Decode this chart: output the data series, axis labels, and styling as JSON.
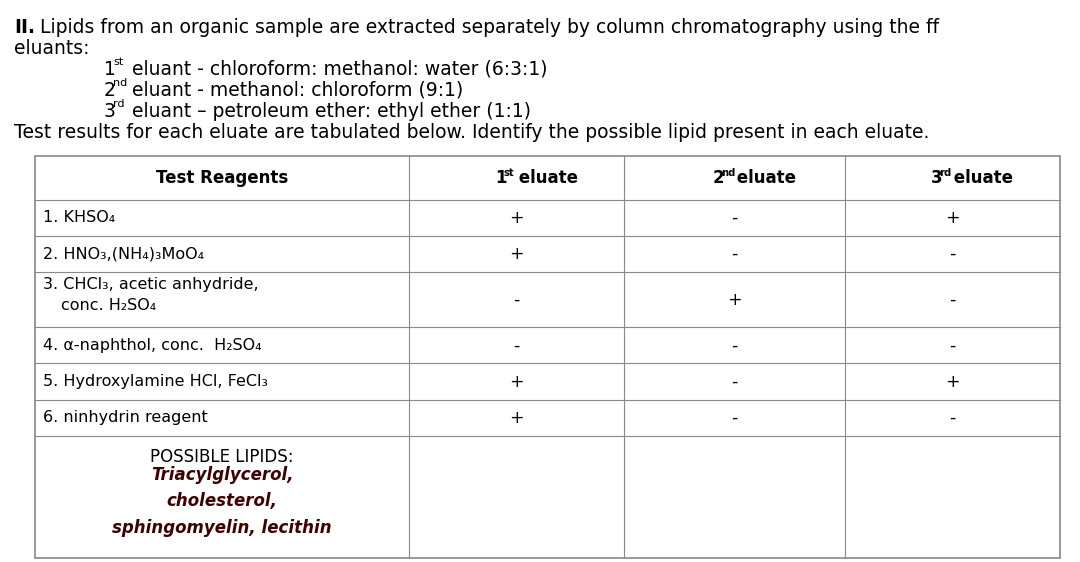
{
  "background_color": "#ffffff",
  "text_color": "#000000",
  "dark_red": "#3d0000",
  "border_color": "#888888",
  "font_family": "DejaVu Sans",
  "font_size_intro": 13.5,
  "font_size_table": 11.5,
  "font_size_header": 12.0,
  "font_size_lipids": 12.0,
  "col_headers": [
    "Test Reagents",
    "1st eluate",
    "2nd eluate",
    "3rd eluate"
  ],
  "reagents": [
    "1. KHSO₄",
    "2. HNO₃,(NH₄)₃MoO₄",
    "3. CHCl₃, acetic anhydride,\n   conc. H₂SO₄",
    "4. α-naphthol, conc.  H₂SO₄",
    "5. Hydroxylamine HCl, FeCl₃",
    "6. ninhydrin reagent"
  ],
  "results": [
    [
      "+",
      "-",
      "+"
    ],
    [
      "+",
      "-",
      "-"
    ],
    [
      "-",
      "+",
      "-"
    ],
    [
      "-",
      "-",
      "-"
    ],
    [
      "+",
      "-",
      "+"
    ],
    [
      "+",
      "-",
      "-"
    ]
  ],
  "possible_lipids_label": "POSSIBLE LIPIDS:",
  "possible_lipids_values": [
    "Triacylglycerol,",
    "cholesterol,",
    "sphingomyelin, lecithin"
  ]
}
